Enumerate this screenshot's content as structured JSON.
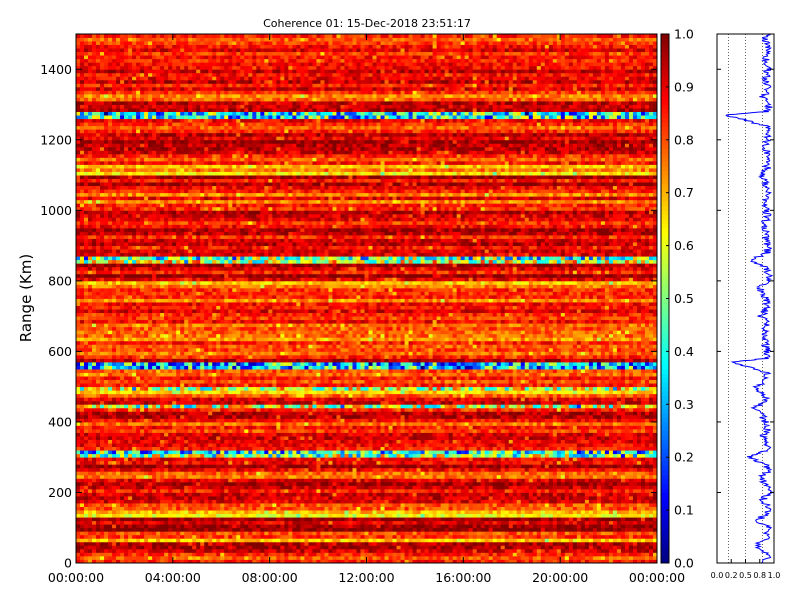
{
  "chart_data": [
    {
      "type": "heatmap",
      "title": "Coherence 01: 15-Dec-2018 23:51:17",
      "ylabel": "Range (Km)",
      "xlabel": "",
      "x_tick_labels": [
        "00:00:00",
        "04:00:00",
        "08:00:00",
        "12:00:00",
        "16:00:00",
        "20:00:00",
        "00:00:00"
      ],
      "x_range_hours": [
        0,
        24
      ],
      "ylim": [
        0,
        1500
      ],
      "y_ticks": [
        0,
        200,
        400,
        600,
        800,
        1000,
        1200,
        1400
      ],
      "colormap": "jet",
      "value_range": [
        0.0,
        1.0
      ],
      "colorbar_ticks": [
        0.0,
        0.1,
        0.2,
        0.3,
        0.4,
        0.5,
        0.6,
        0.7,
        0.8,
        0.9,
        1.0
      ],
      "range_profile": {
        "description": "typical coherence per range gate",
        "bands": [
          {
            "range": [
              0,
              40
            ],
            "value": 0.82
          },
          {
            "range": [
              40,
              60
            ],
            "value": 0.92
          },
          {
            "range": [
              60,
              90
            ],
            "value": 0.75
          },
          {
            "range": [
              90,
              130
            ],
            "value": 0.93
          },
          {
            "range": [
              130,
              150
            ],
            "value": 0.68
          },
          {
            "range": [
              150,
              200
            ],
            "value": 0.85
          },
          {
            "range": [
              200,
              240
            ],
            "value": 0.93
          },
          {
            "range": [
              240,
              270
            ],
            "value": 0.8
          },
          {
            "range": [
              270,
              300
            ],
            "value": 0.9
          },
          {
            "range": [
              300,
              325
            ],
            "value": 0.45
          },
          {
            "range": [
              325,
              360
            ],
            "value": 0.92
          },
          {
            "range": [
              360,
              400
            ],
            "value": 0.82
          },
          {
            "range": [
              400,
              440
            ],
            "value": 0.88
          },
          {
            "range": [
              440,
              450
            ],
            "value": 0.55
          },
          {
            "range": [
              450,
              480
            ],
            "value": 0.86
          },
          {
            "range": [
              480,
              500
            ],
            "value": 0.65
          },
          {
            "range": [
              500,
              550
            ],
            "value": 0.82
          },
          {
            "range": [
              550,
              570
            ],
            "value": 0.35
          },
          {
            "range": [
              570,
              620
            ],
            "value": 0.86
          },
          {
            "range": [
              620,
              700
            ],
            "value": 0.82
          },
          {
            "range": [
              700,
              780
            ],
            "value": 0.84
          },
          {
            "range": [
              780,
              800
            ],
            "value": 0.72
          },
          {
            "range": [
              800,
              850
            ],
            "value": 0.9
          },
          {
            "range": [
              850,
              870
            ],
            "value": 0.55
          },
          {
            "range": [
              870,
              1000
            ],
            "value": 0.88
          },
          {
            "range": [
              1000,
              1050
            ],
            "value": 0.82
          },
          {
            "range": [
              1050,
              1100
            ],
            "value": 0.9
          },
          {
            "range": [
              1100,
              1130
            ],
            "value": 0.7
          },
          {
            "range": [
              1130,
              1260
            ],
            "value": 0.88
          },
          {
            "range": [
              1260,
              1280
            ],
            "value": 0.35
          },
          {
            "range": [
              1280,
              1310
            ],
            "value": 0.92
          },
          {
            "range": [
              1310,
              1330
            ],
            "value": 0.7
          },
          {
            "range": [
              1330,
              1460
            ],
            "value": 0.9
          },
          {
            "range": [
              1460,
              1500
            ],
            "value": 0.78
          }
        ]
      }
    },
    {
      "type": "line",
      "series": [
        {
          "orientation": "vertical",
          "range_km": [
            0,
            25,
            50,
            75,
            100,
            120,
            140,
            160,
            180,
            200,
            220,
            240,
            260,
            280,
            300,
            310,
            320,
            340,
            360,
            380,
            400,
            420,
            440,
            460,
            480,
            500,
            520,
            540,
            560,
            570,
            580,
            600,
            620,
            640,
            660,
            680,
            700,
            720,
            740,
            760,
            780,
            800,
            820,
            840,
            860,
            880,
            900,
            920,
            940,
            960,
            980,
            1000,
            1020,
            1040,
            1060,
            1080,
            1100,
            1120,
            1140,
            1160,
            1180,
            1200,
            1220,
            1240,
            1260,
            1270,
            1280,
            1300,
            1320,
            1340,
            1360,
            1380,
            1400,
            1420,
            1440,
            1460,
            1480,
            1500
          ],
          "coherence": [
            0.85,
            0.9,
            0.7,
            0.88,
            0.92,
            0.72,
            0.85,
            0.9,
            0.8,
            0.92,
            0.88,
            0.75,
            0.9,
            0.86,
            0.55,
            0.7,
            0.88,
            0.9,
            0.82,
            0.88,
            0.85,
            0.78,
            0.65,
            0.88,
            0.8,
            0.7,
            0.85,
            0.88,
            0.45,
            0.3,
            0.85,
            0.88,
            0.84,
            0.86,
            0.82,
            0.88,
            0.78,
            0.85,
            0.88,
            0.82,
            0.74,
            0.88,
            0.9,
            0.86,
            0.6,
            0.88,
            0.9,
            0.85,
            0.88,
            0.82,
            0.9,
            0.86,
            0.82,
            0.88,
            0.9,
            0.84,
            0.78,
            0.88,
            0.86,
            0.9,
            0.82,
            0.88,
            0.9,
            0.85,
            0.4,
            0.1,
            0.88,
            0.92,
            0.8,
            0.9,
            0.88,
            0.86,
            0.9,
            0.88,
            0.85,
            0.9,
            0.86,
            0.88
          ]
        }
      ],
      "xlim": [
        0,
        1
      ],
      "x_tick_labels": [
        "0.0",
        "0.2",
        "0.5",
        "0.8",
        "1.0"
      ],
      "ylim": [
        0,
        1500
      ]
    }
  ]
}
